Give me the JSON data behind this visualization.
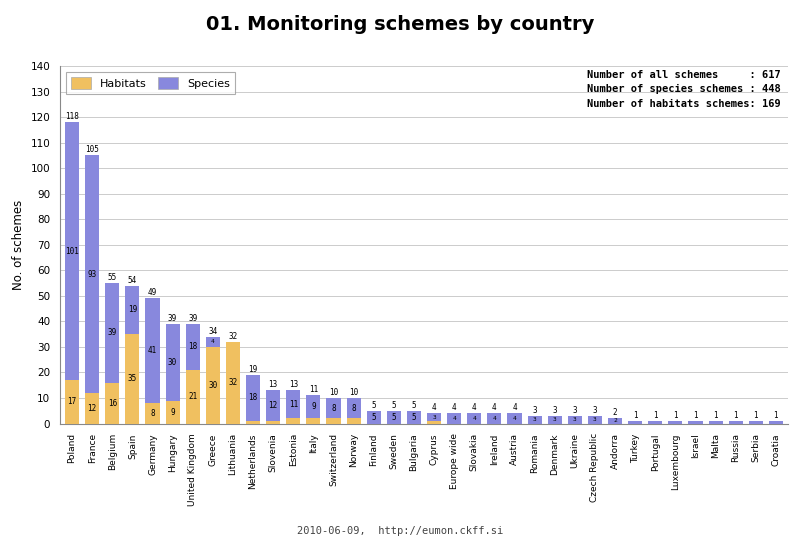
{
  "title": "01. Monitoring schemes by country",
  "ylabel": "No. of schemes",
  "footer": "2010-06-09,  http://eumon.ckff.si",
  "annotation_line1": "Number of all schemes     : 617",
  "annotation_line2": "Number of species schemes : 448",
  "annotation_line3": "Number of habitats schemes: 169",
  "countries": [
    "Poland",
    "France",
    "Belgium",
    "Spain",
    "Germany",
    "Hungary",
    "United Kingdom",
    "Greece",
    "Lithuania",
    "Netherlands",
    "Slovenia",
    "Estonia",
    "Italy",
    "Switzerland",
    "Norway",
    "Finland",
    "Sweden",
    "Bulgaria",
    "Cyprus",
    "Europe wide",
    "Slovakia",
    "Ireland",
    "Austria",
    "Romania",
    "Denmark",
    "Ukraine",
    "Czech Republic",
    "Andorra",
    "Turkey",
    "Portugal",
    "Luxembourg",
    "Israel",
    "Malta",
    "Russia",
    "Serbia",
    "Croatia"
  ],
  "habitats": [
    17,
    12,
    16,
    35,
    8,
    9,
    21,
    30,
    32,
    1,
    1,
    2,
    2,
    2,
    2,
    0,
    0,
    0,
    1,
    0,
    0,
    0,
    0,
    0,
    0,
    0,
    0,
    0,
    0,
    0,
    0,
    0,
    0,
    0,
    0,
    0
  ],
  "species": [
    101,
    93,
    39,
    19,
    41,
    30,
    18,
    4,
    0,
    18,
    12,
    11,
    9,
    8,
    8,
    5,
    5,
    5,
    3,
    4,
    4,
    4,
    4,
    3,
    3,
    3,
    3,
    2,
    1,
    1,
    1,
    1,
    1,
    1,
    1,
    1
  ],
  "total": [
    118,
    105,
    55,
    54,
    49,
    39,
    39,
    34,
    32,
    19,
    13,
    13,
    11,
    10,
    10,
    5,
    5,
    5,
    4,
    4,
    4,
    4,
    4,
    3,
    3,
    3,
    3,
    2,
    1,
    1,
    1,
    1,
    1,
    1,
    1,
    1
  ],
  "habitats_color": "#F0C060",
  "species_color": "#8888DD",
  "ylim": [
    0,
    140
  ],
  "yticks": [
    0,
    10,
    20,
    30,
    40,
    50,
    60,
    70,
    80,
    90,
    100,
    110,
    120,
    130,
    140
  ],
  "grid_color": "#CCCCCC",
  "title_bar_color": "#C0C0C0",
  "fig_bg_color": "#FFFFFF",
  "plot_bg_color": "#FFFFFF"
}
